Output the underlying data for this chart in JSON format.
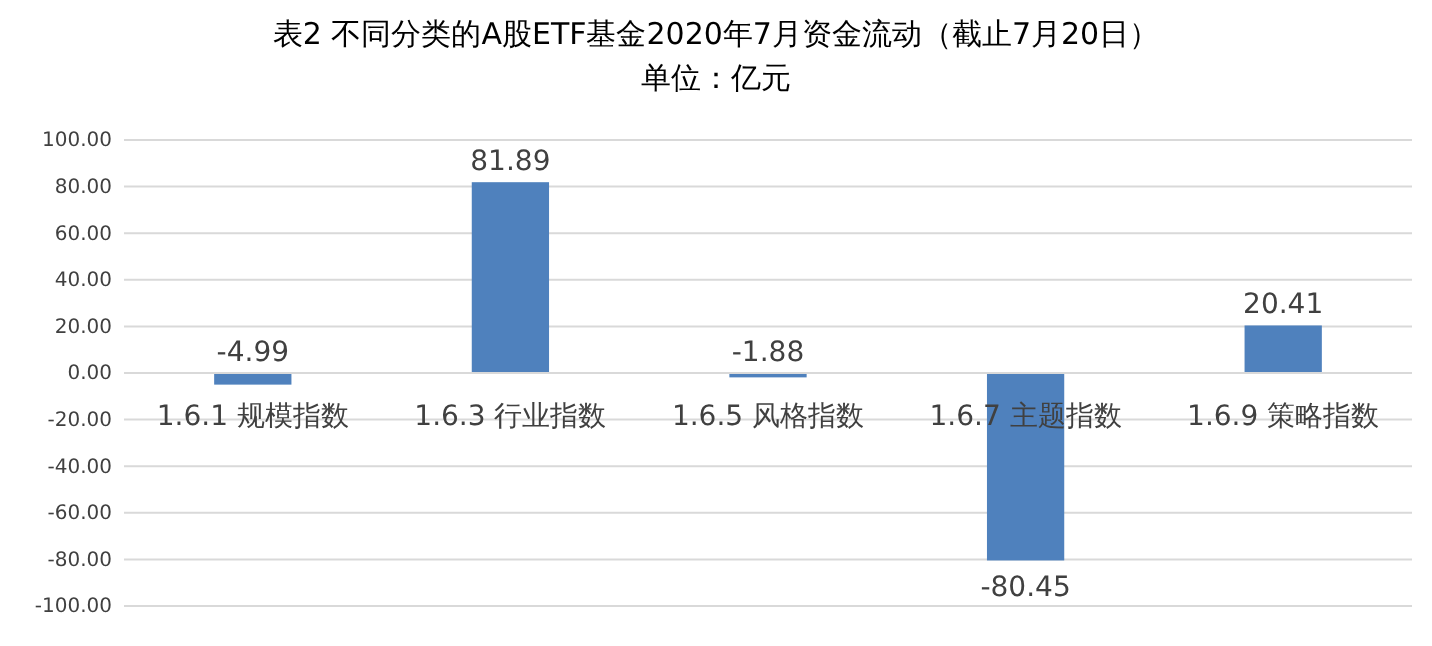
{
  "chart_data": {
    "type": "bar",
    "title": "表2 不同分类的A股ETF基金2020年7月资金流动（截止7月20日）",
    "subtitle": "单位：亿元",
    "categories": [
      "1.6.1 规模指数",
      "1.6.3 行业指数",
      "1.6.5 风格指数",
      "1.6.7 主题指数",
      "1.6.9 策略指数"
    ],
    "values": [
      -4.99,
      81.89,
      -1.88,
      -80.45,
      20.41
    ],
    "color": "#4f81bd",
    "ylim": [
      -100,
      100
    ],
    "yticks": [
      {
        "value": -100,
        "label": "-100.00"
      },
      {
        "value": -80,
        "label": "-80.00"
      },
      {
        "value": -60,
        "label": "-60.00"
      },
      {
        "value": -40,
        "label": "-40.00"
      },
      {
        "value": -20,
        "label": "-20.00"
      },
      {
        "value": 0,
        "label": "0.00"
      },
      {
        "value": 20,
        "label": "20.00"
      },
      {
        "value": 40,
        "label": "40.00"
      },
      {
        "value": 60,
        "label": "60.00"
      },
      {
        "value": 80,
        "label": "80.00"
      },
      {
        "value": 100,
        "label": "100.00"
      }
    ],
    "grid": "y",
    "data_labels": true
  }
}
